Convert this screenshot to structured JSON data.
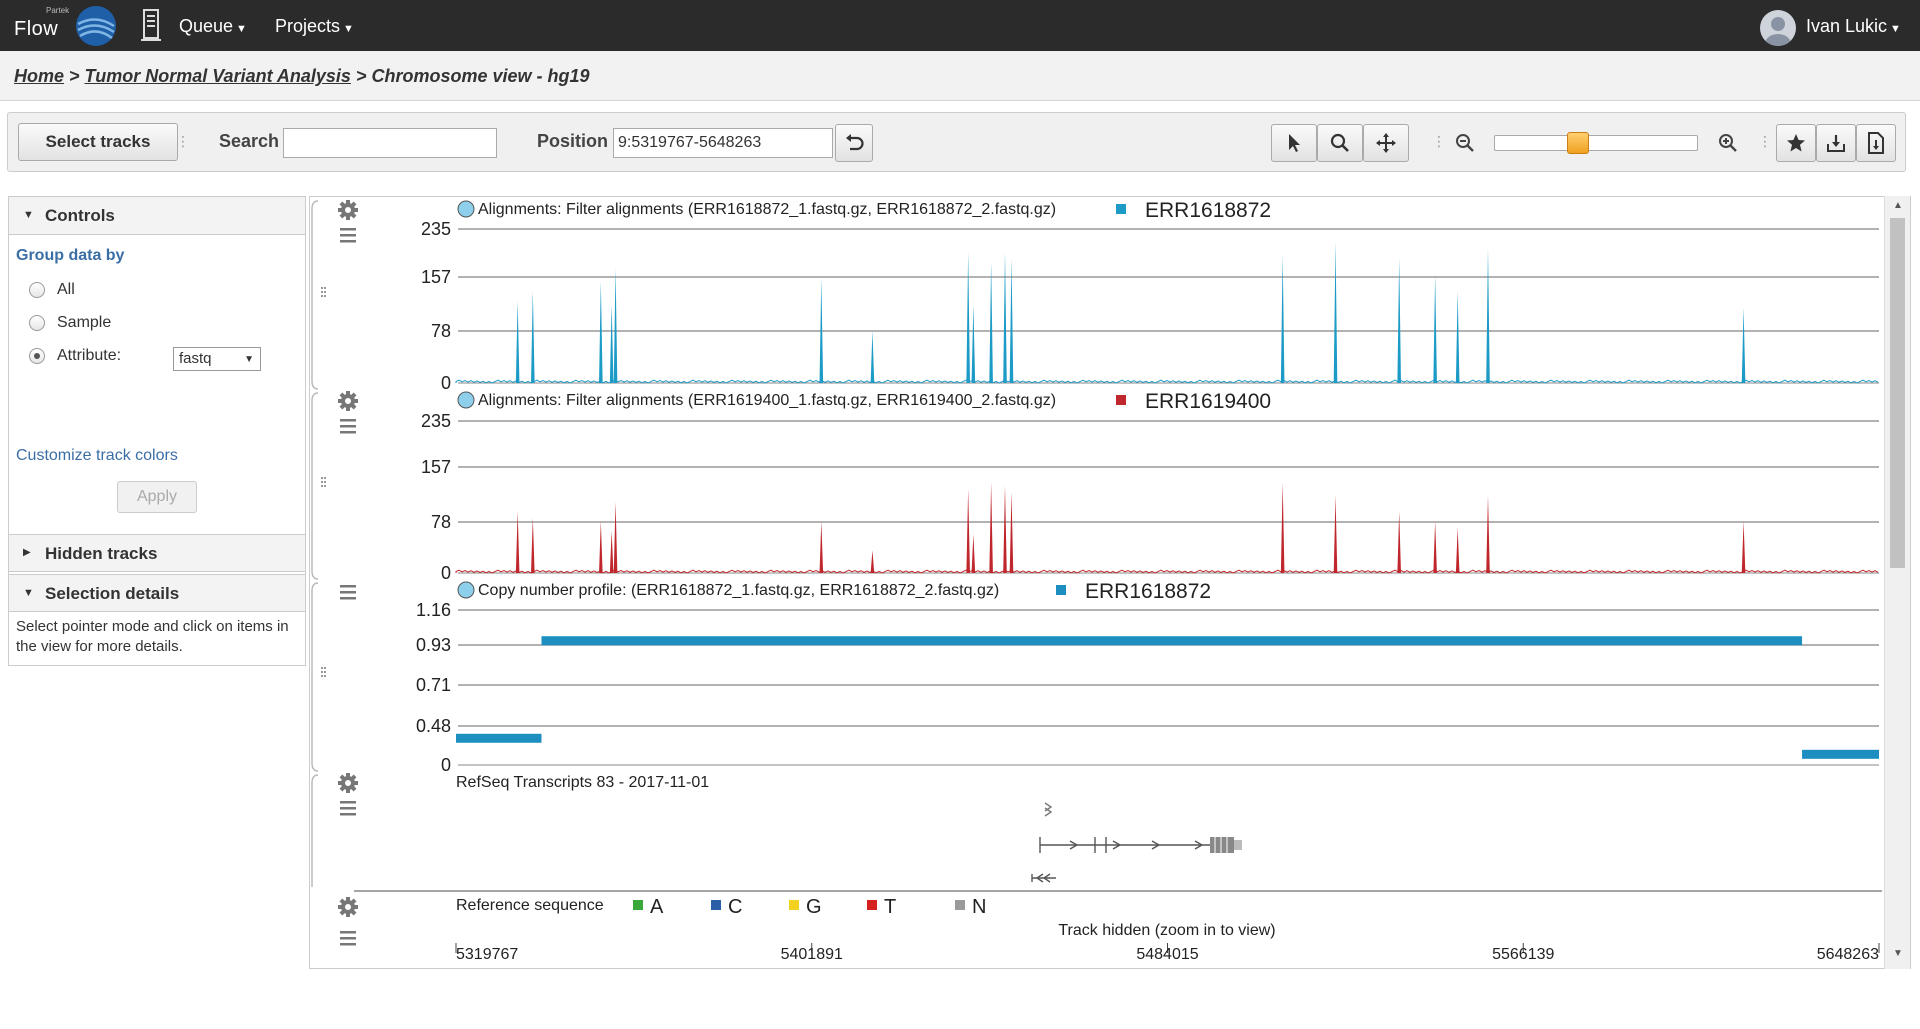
{
  "app": {
    "brand_small": "Partek",
    "brand": "Flow",
    "menu": [
      {
        "label": "Queue",
        "icon": "chevron-down-icon"
      },
      {
        "label": "Projects",
        "icon": "chevron-down-icon"
      }
    ],
    "user": {
      "name": "Ivan Lukic",
      "icon": "user-avatar-icon"
    }
  },
  "breadcrumb": {
    "home": "Home",
    "sep1": " > ",
    "project": "Tumor Normal Variant Analysis",
    "sep2": " > ",
    "current": "Chromosome view - hg19"
  },
  "toolbar": {
    "select_tracks": "Select tracks",
    "search_label": "Search",
    "search_value": "",
    "position_label": "Position",
    "position_value": "9:5319767-5648263",
    "tools": [
      "undo-icon",
      "pointer-icon",
      "zoom-select-icon",
      "pan-icon",
      "zoom-out-icon",
      "zoom-in-icon",
      "favorite-star-icon",
      "download-image-icon",
      "export-icon"
    ],
    "zoom_level": 0.4
  },
  "left_panel": {
    "controls_title": "Controls",
    "group_by_label": "Group data by",
    "options": [
      {
        "label": "All",
        "checked": false
      },
      {
        "label": "Sample",
        "checked": false
      },
      {
        "label": "Attribute:",
        "checked": true
      }
    ],
    "attribute_value": "fastq",
    "customize_link": "Customize track colors",
    "apply_label": "Apply",
    "hidden_tracks_title": "Hidden tracks",
    "selection_title": "Selection details",
    "selection_text": "Select pointer mode and click on items in the view for more details."
  },
  "tracks": [
    {
      "title": "Alignments: Filter alignments (ERR1618872_1.fastq.gz, ERR1618872_2.fastq.gz)",
      "legend": "ERR1618872",
      "color": "#1d9bc7",
      "yticks": [
        "235",
        "157",
        "78",
        "0"
      ]
    },
    {
      "title": "Alignments: Filter alignments (ERR1619400_1.fastq.gz, ERR1619400_2.fastq.gz)",
      "legend": "ERR1619400",
      "color": "#c0272d",
      "yticks": [
        "235",
        "157",
        "78",
        "0"
      ]
    },
    {
      "title": "Copy number profile: (ERR1618872_1.fastq.gz, ERR1618872_2.fastq.gz)",
      "legend": "ERR1618872",
      "color": "#1c8fc0",
      "yticks": [
        "1.16",
        "0.93",
        "0.71",
        "0.48",
        "0"
      ]
    },
    {
      "title": "RefSeq Transcripts 83 - 2017-11-01"
    },
    {
      "title": "Reference sequence",
      "bases": [
        {
          "label": "A",
          "color": "#3aa83a"
        },
        {
          "label": "C",
          "color": "#2a5fa8"
        },
        {
          "label": "G",
          "color": "#f2d21f"
        },
        {
          "label": "T",
          "color": "#d52020"
        },
        {
          "label": "N",
          "color": "#9a9a9a"
        }
      ],
      "hidden_note": "Track hidden (zoom in to view)"
    }
  ],
  "chart_data": {
    "type": "bar",
    "x_range": [
      5319767,
      5648263
    ],
    "x_ticks": [
      "5319767",
      "5401891",
      "5484015",
      "5566139",
      "5648263"
    ],
    "series": [
      {
        "name": "ERR1618872",
        "y_range": [
          0,
          235
        ],
        "peaks": [
          [
            5334000,
            125
          ],
          [
            5337500,
            140
          ],
          [
            5353200,
            155
          ],
          [
            5355700,
            120
          ],
          [
            5356600,
            175
          ],
          [
            5404100,
            160
          ],
          [
            5415900,
            80
          ],
          [
            5438000,
            200
          ],
          [
            5439200,
            120
          ],
          [
            5443300,
            185
          ],
          [
            5446500,
            200
          ],
          [
            5448000,
            190
          ],
          [
            5510600,
            195
          ],
          [
            5522800,
            215
          ],
          [
            5537500,
            190
          ],
          [
            5545800,
            165
          ],
          [
            5551000,
            140
          ],
          [
            5558000,
            205
          ],
          [
            5617000,
            115
          ]
        ]
      },
      {
        "name": "ERR1619400",
        "y_range": [
          0,
          235
        ],
        "peaks": [
          [
            5334000,
            95
          ],
          [
            5337500,
            85
          ],
          [
            5353200,
            80
          ],
          [
            5355700,
            65
          ],
          [
            5356600,
            110
          ],
          [
            5404100,
            80
          ],
          [
            5415900,
            35
          ],
          [
            5438000,
            130
          ],
          [
            5439200,
            60
          ],
          [
            5443300,
            140
          ],
          [
            5446500,
            135
          ],
          [
            5448000,
            125
          ],
          [
            5510600,
            140
          ],
          [
            5522800,
            120
          ],
          [
            5537500,
            95
          ],
          [
            5545800,
            80
          ],
          [
            5551000,
            70
          ],
          [
            5558000,
            120
          ],
          [
            5617000,
            80
          ]
        ]
      },
      {
        "name": "ERR1618872 copy number",
        "y_range": [
          0,
          1.16
        ],
        "segments": [
          [
            5319767,
            5339500,
            0.2
          ],
          [
            5339500,
            5630500,
            0.93
          ],
          [
            5630500,
            5648263,
            0.08
          ]
        ]
      }
    ]
  }
}
